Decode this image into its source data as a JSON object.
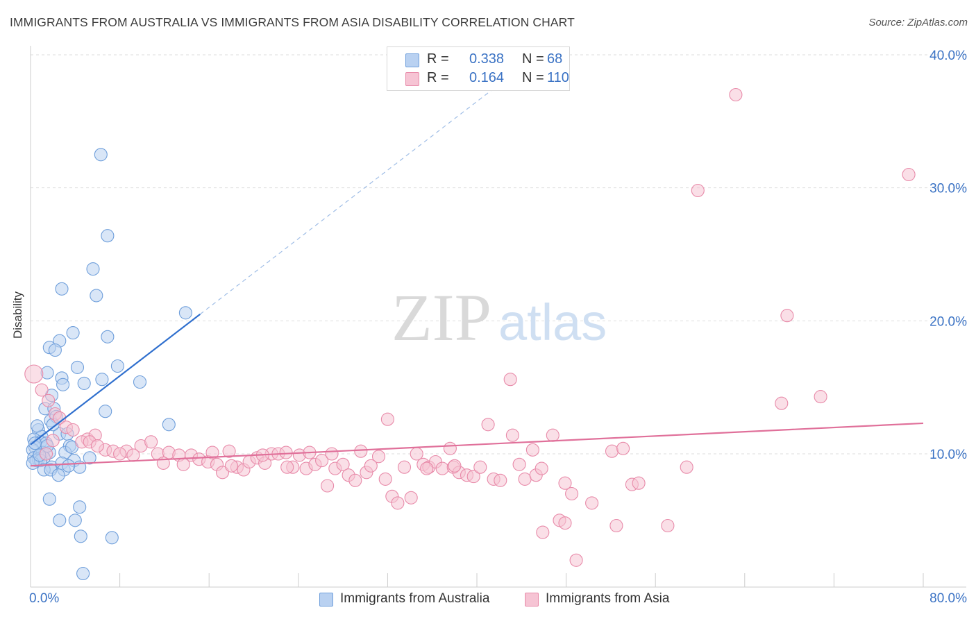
{
  "title": "IMMIGRANTS FROM AUSTRALIA VS IMMIGRANTS FROM ASIA DISABILITY CORRELATION CHART",
  "source": "Source: ZipAtlas.com",
  "watermark": {
    "zip": "ZIP",
    "atlas": "atlas"
  },
  "stats": {
    "australia": {
      "r_label": "R =",
      "r_value": "0.338",
      "n_label": "N =",
      "n_value": "68"
    },
    "asia": {
      "r_label": "R =",
      "r_value": "0.164",
      "n_label": "N =",
      "n_value": "110"
    }
  },
  "colors": {
    "australia_fill": "#b9d1f1",
    "australia_stroke": "#6f9fdb",
    "australia_line": "#2f6fce",
    "asia_fill": "#f6c4d4",
    "asia_stroke": "#e88aa9",
    "asia_line": "#e0709a",
    "tick_label": "#3a72c4",
    "grid": "#dddddd"
  },
  "chart_data": {
    "type": "scatter",
    "title": "IMMIGRANTS FROM AUSTRALIA VS IMMIGRANTS FROM ASIA DISABILITY CORRELATION CHART",
    "xlabel": "",
    "ylabel": "Disability",
    "xlim": [
      0,
      80
    ],
    "ylim": [
      0,
      42
    ],
    "x_tick_labels": {
      "min": "0.0%",
      "max": "80.0%"
    },
    "y_ticks": [
      10,
      20,
      30,
      40
    ],
    "y_tick_labels": [
      "10.0%",
      "20.0%",
      "30.0%",
      "40.0%"
    ],
    "legend": [
      "Immigrants from Australia",
      "Immigrants from Asia"
    ],
    "series": [
      {
        "name": "Immigrants from Australia",
        "trend": {
          "x0": 0,
          "y0": 10.7,
          "x1": 15.2,
          "y1": 20.5,
          "dashed_to_x": 42.5
        },
        "points": [
          [
            6.3,
            32.5
          ],
          [
            6.9,
            26.4
          ],
          [
            5.6,
            23.9
          ],
          [
            2.8,
            22.4
          ],
          [
            5.9,
            21.9
          ],
          [
            13.9,
            20.6
          ],
          [
            3.8,
            19.1
          ],
          [
            6.9,
            18.8
          ],
          [
            2.6,
            18.5
          ],
          [
            1.7,
            18.0
          ],
          [
            2.2,
            17.8
          ],
          [
            7.8,
            16.6
          ],
          [
            4.2,
            16.5
          ],
          [
            1.5,
            16.1
          ],
          [
            2.8,
            15.7
          ],
          [
            6.4,
            15.6
          ],
          [
            9.8,
            15.4
          ],
          [
            4.8,
            15.3
          ],
          [
            2.9,
            15.2
          ],
          [
            1.9,
            14.4
          ],
          [
            1.3,
            13.4
          ],
          [
            2.1,
            13.4
          ],
          [
            6.7,
            13.2
          ],
          [
            1.8,
            12.5
          ],
          [
            2.3,
            12.8
          ],
          [
            12.4,
            12.2
          ],
          [
            0.7,
            11.8
          ],
          [
            1.0,
            11.3
          ],
          [
            2.6,
            11.5
          ],
          [
            3.3,
            11.5
          ],
          [
            0.3,
            11.1
          ],
          [
            0.9,
            10.9
          ],
          [
            1.4,
            10.8
          ],
          [
            0.4,
            10.5
          ],
          [
            3.5,
            10.6
          ],
          [
            0.2,
            10.3
          ],
          [
            1.1,
            10.1
          ],
          [
            1.7,
            10.1
          ],
          [
            3.1,
            10.1
          ],
          [
            3.7,
            10.5
          ],
          [
            0.3,
            9.7
          ],
          [
            0.7,
            9.6
          ],
          [
            1.2,
            9.7
          ],
          [
            0.5,
            9.5
          ],
          [
            0.9,
            9.5
          ],
          [
            0.2,
            9.3
          ],
          [
            1.9,
            9.0
          ],
          [
            3.9,
            9.5
          ],
          [
            5.3,
            9.7
          ],
          [
            2.8,
            9.3
          ],
          [
            4.4,
            9.0
          ],
          [
            3.0,
            8.8
          ],
          [
            1.2,
            8.8
          ],
          [
            1.8,
            8.8
          ],
          [
            2.5,
            8.4
          ],
          [
            1.7,
            6.6
          ],
          [
            4.4,
            6.0
          ],
          [
            2.6,
            5.0
          ],
          [
            4.0,
            5.0
          ],
          [
            4.5,
            3.8
          ],
          [
            7.3,
            3.7
          ],
          [
            4.7,
            1.0
          ],
          [
            0.4,
            10.8
          ],
          [
            1.5,
            10.6
          ],
          [
            0.6,
            12.1
          ],
          [
            2.0,
            12.2
          ],
          [
            0.8,
            9.9
          ],
          [
            3.4,
            9.1
          ]
        ]
      },
      {
        "name": "Immigrants from Asia",
        "trend": {
          "x0": 0,
          "y0": 9.1,
          "x1": 80,
          "y1": 12.3
        },
        "points": [
          [
            63.2,
            37.0
          ],
          [
            78.7,
            31.0
          ],
          [
            59.8,
            29.8
          ],
          [
            67.8,
            20.4
          ],
          [
            43.0,
            15.6
          ],
          [
            67.3,
            13.8
          ],
          [
            70.8,
            14.3
          ],
          [
            0.3,
            16.0
          ],
          [
            1.0,
            14.8
          ],
          [
            1.6,
            14.0
          ],
          [
            2.2,
            13.0
          ],
          [
            2.6,
            12.7
          ],
          [
            3.2,
            12.0
          ],
          [
            3.8,
            11.8
          ],
          [
            5.1,
            11.1
          ],
          [
            5.8,
            11.4
          ],
          [
            4.6,
            10.9
          ],
          [
            5.3,
            10.9
          ],
          [
            6.7,
            10.3
          ],
          [
            7.4,
            10.2
          ],
          [
            8.6,
            10.2
          ],
          [
            9.9,
            10.6
          ],
          [
            10.8,
            10.9
          ],
          [
            11.4,
            10.0
          ],
          [
            12.4,
            10.1
          ],
          [
            13.3,
            9.9
          ],
          [
            14.4,
            9.9
          ],
          [
            15.1,
            9.6
          ],
          [
            15.9,
            9.4
          ],
          [
            16.7,
            9.2
          ],
          [
            17.2,
            8.6
          ],
          [
            17.8,
            10.2
          ],
          [
            18.5,
            9.0
          ],
          [
            19.1,
            8.8
          ],
          [
            19.6,
            9.4
          ],
          [
            20.3,
            9.7
          ],
          [
            21.0,
            9.3
          ],
          [
            21.6,
            10.0
          ],
          [
            22.2,
            10.0
          ],
          [
            22.9,
            10.1
          ],
          [
            23.5,
            9.0
          ],
          [
            24.1,
            9.9
          ],
          [
            24.7,
            8.9
          ],
          [
            25.5,
            9.2
          ],
          [
            26.1,
            9.5
          ],
          [
            26.6,
            7.6
          ],
          [
            27.3,
            8.9
          ],
          [
            28.0,
            9.2
          ],
          [
            28.5,
            8.4
          ],
          [
            29.1,
            8.0
          ],
          [
            29.6,
            10.2
          ],
          [
            30.1,
            8.6
          ],
          [
            31.2,
            9.8
          ],
          [
            31.8,
            8.1
          ],
          [
            32.0,
            12.6
          ],
          [
            32.4,
            6.8
          ],
          [
            32.9,
            6.3
          ],
          [
            33.5,
            9.0
          ],
          [
            34.1,
            6.7
          ],
          [
            34.6,
            10.0
          ],
          [
            35.2,
            9.2
          ],
          [
            35.7,
            9.0
          ],
          [
            36.3,
            9.4
          ],
          [
            36.9,
            8.9
          ],
          [
            37.6,
            10.4
          ],
          [
            37.9,
            9.0
          ],
          [
            38.4,
            8.6
          ],
          [
            39.1,
            8.4
          ],
          [
            39.7,
            8.3
          ],
          [
            40.3,
            9.0
          ],
          [
            41.0,
            12.2
          ],
          [
            41.5,
            8.1
          ],
          [
            42.1,
            8.0
          ],
          [
            43.2,
            11.4
          ],
          [
            43.8,
            9.2
          ],
          [
            44.3,
            8.1
          ],
          [
            45.0,
            10.3
          ],
          [
            45.3,
            8.4
          ],
          [
            45.8,
            8.9
          ],
          [
            45.9,
            4.1
          ],
          [
            46.8,
            11.4
          ],
          [
            47.4,
            5.0
          ],
          [
            47.9,
            4.8
          ],
          [
            47.9,
            7.8
          ],
          [
            48.5,
            7.0
          ],
          [
            48.9,
            2.0
          ],
          [
            50.3,
            6.3
          ],
          [
            52.1,
            10.2
          ],
          [
            52.5,
            4.6
          ],
          [
            53.1,
            10.4
          ],
          [
            53.9,
            7.7
          ],
          [
            54.5,
            7.8
          ],
          [
            57.1,
            4.6
          ],
          [
            58.8,
            9.0
          ],
          [
            1.4,
            10.0
          ],
          [
            2.0,
            11.0
          ],
          [
            6.0,
            10.6
          ],
          [
            8.0,
            10.0
          ],
          [
            9.2,
            9.9
          ],
          [
            11.9,
            9.3
          ],
          [
            13.7,
            9.2
          ],
          [
            16.3,
            10.1
          ],
          [
            18.0,
            9.1
          ],
          [
            20.8,
            9.9
          ],
          [
            23.0,
            9.0
          ],
          [
            25.0,
            10.1
          ],
          [
            27.0,
            10.0
          ],
          [
            30.5,
            9.1
          ],
          [
            35.5,
            8.9
          ],
          [
            38.0,
            9.1
          ]
        ]
      }
    ]
  },
  "bottom_legend": {
    "australia": "Immigrants from Australia",
    "asia": "Immigrants from Asia"
  }
}
